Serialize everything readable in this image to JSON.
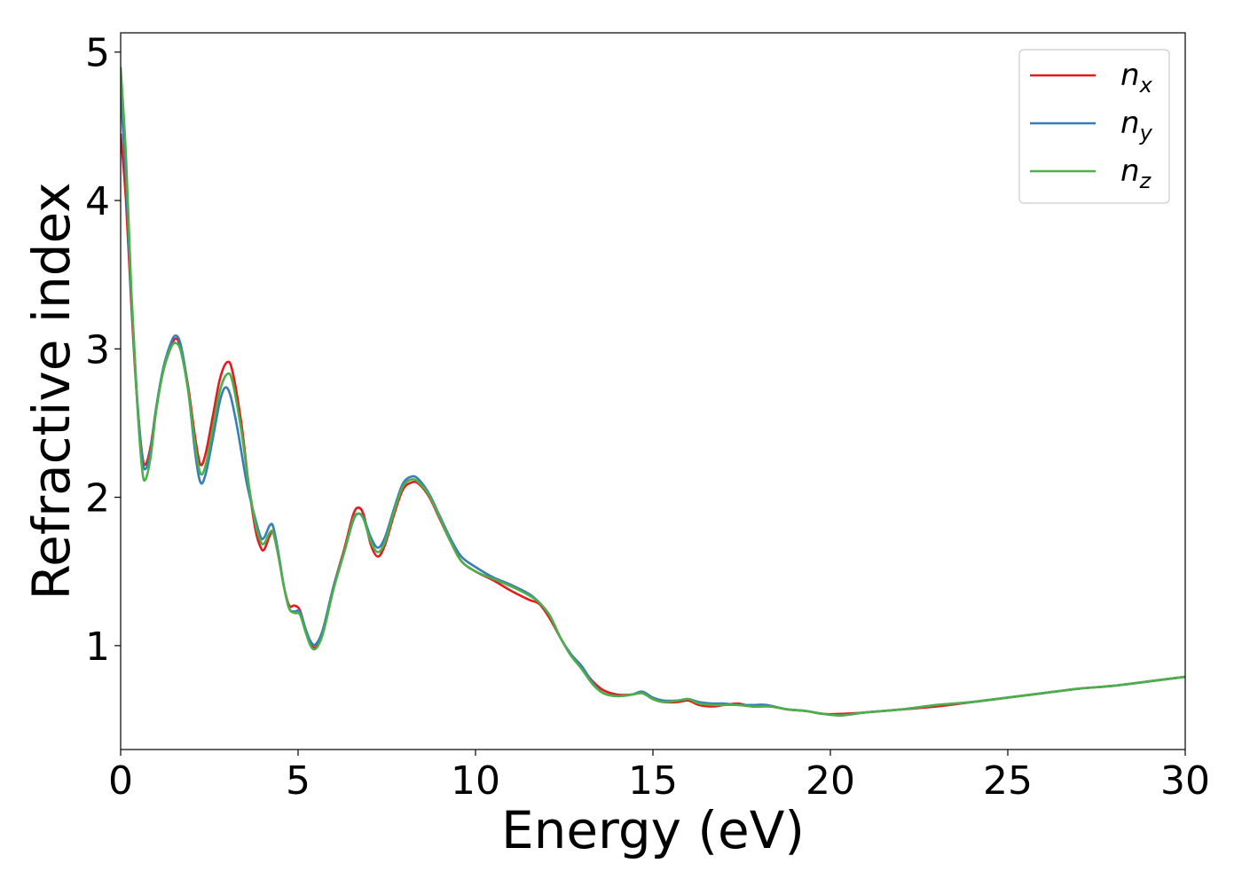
{
  "chart_data": {
    "type": "line",
    "title": "",
    "xlabel": "Energy (eV)",
    "ylabel": "Refractive index",
    "xlim": [
      0,
      30
    ],
    "ylim": [
      0.3,
      5.13
    ],
    "xticks": [
      0,
      5,
      10,
      15,
      20,
      25,
      30
    ],
    "yticks": [
      1,
      2,
      3,
      4,
      5
    ],
    "grid": false,
    "legend_position": "top-right",
    "series": [
      {
        "name": "n",
        "subscript": "x",
        "color": "#e41a1c",
        "points": [
          [
            0,
            4.45
          ],
          [
            0.15,
            4.0
          ],
          [
            0.3,
            3.3
          ],
          [
            0.45,
            2.7
          ],
          [
            0.6,
            2.3
          ],
          [
            0.7,
            2.22
          ],
          [
            0.85,
            2.35
          ],
          [
            1.0,
            2.6
          ],
          [
            1.2,
            2.85
          ],
          [
            1.4,
            3.0
          ],
          [
            1.55,
            3.07
          ],
          [
            1.7,
            3.0
          ],
          [
            1.9,
            2.75
          ],
          [
            2.1,
            2.4
          ],
          [
            2.25,
            2.22
          ],
          [
            2.4,
            2.3
          ],
          [
            2.6,
            2.55
          ],
          [
            2.8,
            2.8
          ],
          [
            3.0,
            2.91
          ],
          [
            3.15,
            2.85
          ],
          [
            3.4,
            2.5
          ],
          [
            3.6,
            2.1
          ],
          [
            3.8,
            1.78
          ],
          [
            3.95,
            1.66
          ],
          [
            4.05,
            1.65
          ],
          [
            4.2,
            1.74
          ],
          [
            4.3,
            1.76
          ],
          [
            4.45,
            1.6
          ],
          [
            4.6,
            1.4
          ],
          [
            4.75,
            1.27
          ],
          [
            4.9,
            1.27
          ],
          [
            5.05,
            1.24
          ],
          [
            5.2,
            1.12
          ],
          [
            5.35,
            1.02
          ],
          [
            5.5,
            0.99
          ],
          [
            5.7,
            1.1
          ],
          [
            6.0,
            1.4
          ],
          [
            6.3,
            1.65
          ],
          [
            6.55,
            1.88
          ],
          [
            6.7,
            1.93
          ],
          [
            6.85,
            1.88
          ],
          [
            7.05,
            1.68
          ],
          [
            7.25,
            1.6
          ],
          [
            7.45,
            1.68
          ],
          [
            7.7,
            1.88
          ],
          [
            7.95,
            2.05
          ],
          [
            8.2,
            2.1
          ],
          [
            8.4,
            2.09
          ],
          [
            8.7,
            2.0
          ],
          [
            9.0,
            1.85
          ],
          [
            9.3,
            1.7
          ],
          [
            9.6,
            1.57
          ],
          [
            10.0,
            1.5
          ],
          [
            10.5,
            1.44
          ],
          [
            11.0,
            1.37
          ],
          [
            11.5,
            1.31
          ],
          [
            11.8,
            1.28
          ],
          [
            12.1,
            1.18
          ],
          [
            12.4,
            1.05
          ],
          [
            12.7,
            0.93
          ],
          [
            13.0,
            0.85
          ],
          [
            13.3,
            0.76
          ],
          [
            13.6,
            0.7
          ],
          [
            14.0,
            0.67
          ],
          [
            14.4,
            0.67
          ],
          [
            14.7,
            0.68
          ],
          [
            15.0,
            0.64
          ],
          [
            15.3,
            0.62
          ],
          [
            15.7,
            0.62
          ],
          [
            16.0,
            0.63
          ],
          [
            16.3,
            0.6
          ],
          [
            16.7,
            0.59
          ],
          [
            17.0,
            0.6
          ],
          [
            17.4,
            0.61
          ],
          [
            17.8,
            0.59
          ],
          [
            18.3,
            0.59
          ],
          [
            18.8,
            0.57
          ],
          [
            19.3,
            0.56
          ],
          [
            19.8,
            0.54
          ],
          [
            20.3,
            0.54
          ],
          [
            21.0,
            0.55
          ],
          [
            22.0,
            0.57
          ],
          [
            23.0,
            0.59
          ],
          [
            24.0,
            0.62
          ],
          [
            25.0,
            0.65
          ],
          [
            26.0,
            0.68
          ],
          [
            27.0,
            0.71
          ],
          [
            28.0,
            0.73
          ],
          [
            29.0,
            0.76
          ],
          [
            30.0,
            0.79
          ]
        ]
      },
      {
        "name": "n",
        "subscript": "y",
        "color": "#377eb8",
        "points": [
          [
            0,
            4.72
          ],
          [
            0.15,
            4.15
          ],
          [
            0.3,
            3.35
          ],
          [
            0.45,
            2.72
          ],
          [
            0.6,
            2.28
          ],
          [
            0.7,
            2.19
          ],
          [
            0.85,
            2.32
          ],
          [
            1.0,
            2.6
          ],
          [
            1.2,
            2.87
          ],
          [
            1.4,
            3.03
          ],
          [
            1.55,
            3.09
          ],
          [
            1.7,
            3.02
          ],
          [
            1.9,
            2.73
          ],
          [
            2.1,
            2.3
          ],
          [
            2.25,
            2.1
          ],
          [
            2.4,
            2.16
          ],
          [
            2.6,
            2.4
          ],
          [
            2.8,
            2.65
          ],
          [
            2.95,
            2.74
          ],
          [
            3.1,
            2.68
          ],
          [
            3.3,
            2.45
          ],
          [
            3.55,
            2.1
          ],
          [
            3.8,
            1.85
          ],
          [
            3.95,
            1.73
          ],
          [
            4.05,
            1.73
          ],
          [
            4.2,
            1.81
          ],
          [
            4.3,
            1.8
          ],
          [
            4.45,
            1.62
          ],
          [
            4.6,
            1.4
          ],
          [
            4.75,
            1.25
          ],
          [
            4.9,
            1.23
          ],
          [
            5.05,
            1.23
          ],
          [
            5.2,
            1.12
          ],
          [
            5.35,
            1.03
          ],
          [
            5.5,
            1.01
          ],
          [
            5.7,
            1.11
          ],
          [
            6.0,
            1.4
          ],
          [
            6.3,
            1.63
          ],
          [
            6.55,
            1.84
          ],
          [
            6.7,
            1.89
          ],
          [
            6.85,
            1.86
          ],
          [
            7.05,
            1.73
          ],
          [
            7.25,
            1.66
          ],
          [
            7.45,
            1.73
          ],
          [
            7.7,
            1.92
          ],
          [
            7.95,
            2.09
          ],
          [
            8.2,
            2.14
          ],
          [
            8.4,
            2.12
          ],
          [
            8.7,
            2.02
          ],
          [
            9.0,
            1.87
          ],
          [
            9.3,
            1.72
          ],
          [
            9.6,
            1.6
          ],
          [
            10.0,
            1.53
          ],
          [
            10.5,
            1.46
          ],
          [
            11.0,
            1.41
          ],
          [
            11.5,
            1.35
          ],
          [
            11.8,
            1.29
          ],
          [
            12.1,
            1.2
          ],
          [
            12.4,
            1.05
          ],
          [
            12.7,
            0.94
          ],
          [
            13.0,
            0.86
          ],
          [
            13.3,
            0.75
          ],
          [
            13.6,
            0.68
          ],
          [
            14.0,
            0.66
          ],
          [
            14.4,
            0.67
          ],
          [
            14.7,
            0.69
          ],
          [
            15.0,
            0.65
          ],
          [
            15.3,
            0.63
          ],
          [
            15.7,
            0.63
          ],
          [
            16.0,
            0.64
          ],
          [
            16.3,
            0.62
          ],
          [
            16.7,
            0.61
          ],
          [
            17.0,
            0.61
          ],
          [
            17.4,
            0.6
          ],
          [
            17.8,
            0.6
          ],
          [
            18.2,
            0.6
          ],
          [
            18.8,
            0.57
          ],
          [
            19.3,
            0.56
          ],
          [
            19.8,
            0.54
          ],
          [
            20.3,
            0.53
          ],
          [
            21.0,
            0.55
          ],
          [
            22.0,
            0.57
          ],
          [
            23.0,
            0.6
          ],
          [
            24.0,
            0.62
          ],
          [
            25.0,
            0.65
          ],
          [
            26.0,
            0.68
          ],
          [
            27.0,
            0.71
          ],
          [
            28.0,
            0.73
          ],
          [
            29.0,
            0.76
          ],
          [
            30.0,
            0.79
          ]
        ]
      },
      {
        "name": "n",
        "subscript": "z",
        "color": "#4daf4a",
        "points": [
          [
            0,
            4.9
          ],
          [
            0.15,
            4.3
          ],
          [
            0.3,
            3.4
          ],
          [
            0.45,
            2.7
          ],
          [
            0.6,
            2.2
          ],
          [
            0.7,
            2.12
          ],
          [
            0.85,
            2.28
          ],
          [
            1.0,
            2.58
          ],
          [
            1.2,
            2.85
          ],
          [
            1.4,
            3.0
          ],
          [
            1.55,
            3.04
          ],
          [
            1.7,
            2.98
          ],
          [
            1.9,
            2.72
          ],
          [
            2.1,
            2.35
          ],
          [
            2.25,
            2.16
          ],
          [
            2.4,
            2.22
          ],
          [
            2.6,
            2.47
          ],
          [
            2.8,
            2.72
          ],
          [
            3.0,
            2.83
          ],
          [
            3.15,
            2.78
          ],
          [
            3.4,
            2.45
          ],
          [
            3.6,
            2.1
          ],
          [
            3.8,
            1.82
          ],
          [
            3.95,
            1.7
          ],
          [
            4.05,
            1.69
          ],
          [
            4.2,
            1.76
          ],
          [
            4.3,
            1.76
          ],
          [
            4.45,
            1.6
          ],
          [
            4.6,
            1.4
          ],
          [
            4.75,
            1.25
          ],
          [
            4.9,
            1.22
          ],
          [
            5.05,
            1.21
          ],
          [
            5.2,
            1.1
          ],
          [
            5.35,
            1.0
          ],
          [
            5.5,
            0.98
          ],
          [
            5.7,
            1.08
          ],
          [
            6.0,
            1.38
          ],
          [
            6.3,
            1.63
          ],
          [
            6.55,
            1.85
          ],
          [
            6.7,
            1.89
          ],
          [
            6.85,
            1.85
          ],
          [
            7.05,
            1.7
          ],
          [
            7.25,
            1.63
          ],
          [
            7.45,
            1.7
          ],
          [
            7.7,
            1.9
          ],
          [
            7.95,
            2.07
          ],
          [
            8.2,
            2.12
          ],
          [
            8.4,
            2.1
          ],
          [
            8.7,
            2.01
          ],
          [
            9.0,
            1.86
          ],
          [
            9.3,
            1.7
          ],
          [
            9.6,
            1.57
          ],
          [
            10.0,
            1.5
          ],
          [
            10.5,
            1.45
          ],
          [
            11.0,
            1.4
          ],
          [
            11.5,
            1.34
          ],
          [
            11.8,
            1.29
          ],
          [
            12.1,
            1.2
          ],
          [
            12.4,
            1.05
          ],
          [
            12.7,
            0.93
          ],
          [
            13.0,
            0.84
          ],
          [
            13.3,
            0.74
          ],
          [
            13.6,
            0.68
          ],
          [
            14.0,
            0.66
          ],
          [
            14.4,
            0.67
          ],
          [
            14.7,
            0.68
          ],
          [
            15.0,
            0.64
          ],
          [
            15.3,
            0.62
          ],
          [
            15.7,
            0.63
          ],
          [
            16.0,
            0.64
          ],
          [
            16.3,
            0.61
          ],
          [
            16.7,
            0.6
          ],
          [
            17.0,
            0.6
          ],
          [
            17.4,
            0.6
          ],
          [
            17.8,
            0.59
          ],
          [
            18.3,
            0.59
          ],
          [
            18.8,
            0.57
          ],
          [
            19.3,
            0.56
          ],
          [
            19.8,
            0.54
          ],
          [
            20.3,
            0.53
          ],
          [
            21.0,
            0.55
          ],
          [
            22.0,
            0.57
          ],
          [
            23.0,
            0.6
          ],
          [
            24.0,
            0.62
          ],
          [
            25.0,
            0.65
          ],
          [
            26.0,
            0.68
          ],
          [
            27.0,
            0.71
          ],
          [
            28.0,
            0.73
          ],
          [
            29.0,
            0.76
          ],
          [
            30.0,
            0.79
          ]
        ]
      }
    ]
  }
}
